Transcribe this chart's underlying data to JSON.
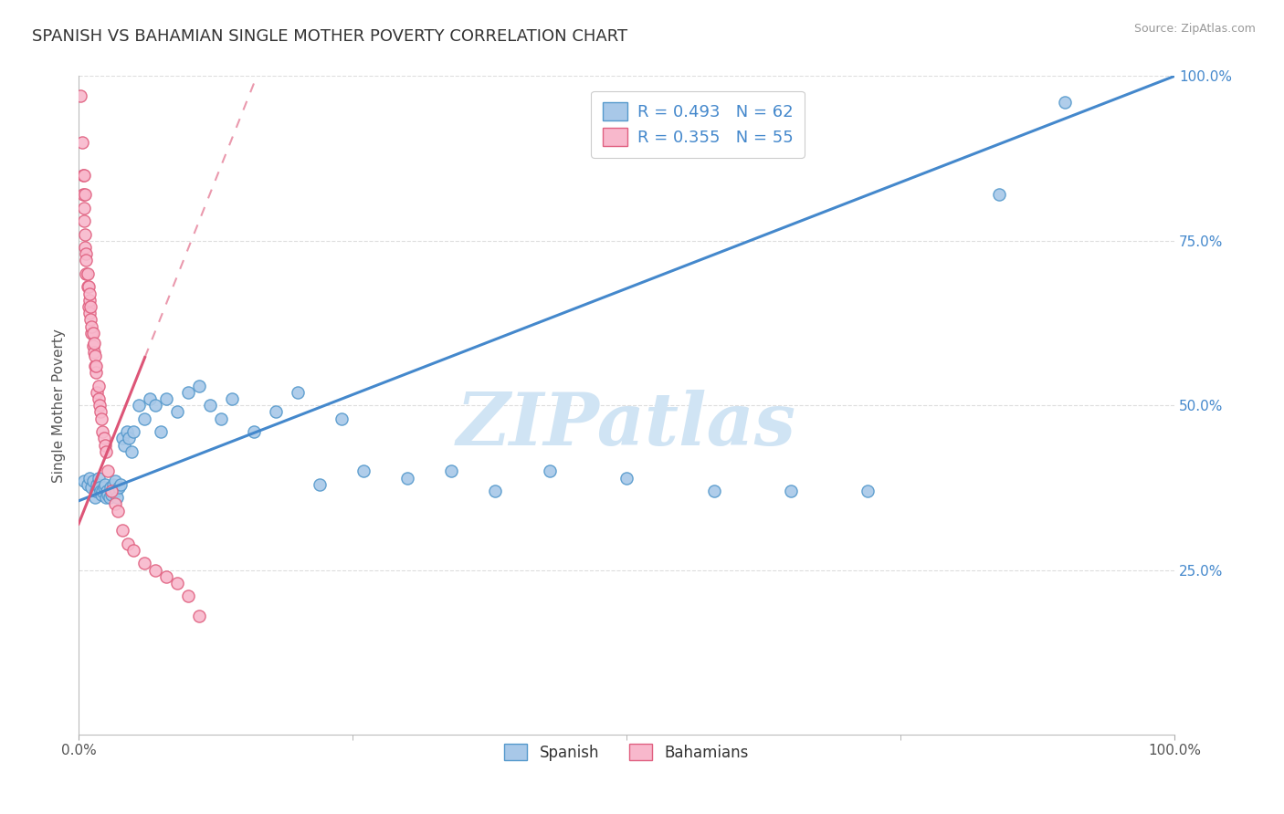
{
  "title": "SPANISH VS BAHAMIAN SINGLE MOTHER POVERTY CORRELATION CHART",
  "source_text": "Source: ZipAtlas.com",
  "ylabel": "Single Mother Poverty",
  "xlim": [
    0.0,
    1.0
  ],
  "ylim": [
    0.0,
    1.0
  ],
  "legend_r1": "R = 0.493",
  "legend_n1": "N = 62",
  "legend_r2": "R = 0.355",
  "legend_n2": "N = 55",
  "blue_color": "#a8c8e8",
  "blue_edge": "#5599cc",
  "pink_color": "#f8b8cc",
  "pink_edge": "#e06080",
  "line_blue": "#4488cc",
  "line_pink": "#dd5577",
  "r_n_color": "#4488cc",
  "watermark": "ZIPatlas",
  "watermark_color": "#d0e4f4",
  "background_color": "#ffffff",
  "title_fontsize": 13,
  "grid_color": "#dddddd",
  "spanish_x": [
    0.005,
    0.008,
    0.01,
    0.012,
    0.013,
    0.015,
    0.016,
    0.017,
    0.018,
    0.019,
    0.02,
    0.021,
    0.022,
    0.023,
    0.024,
    0.025,
    0.026,
    0.027,
    0.028,
    0.029,
    0.03,
    0.031,
    0.032,
    0.033,
    0.034,
    0.035,
    0.037,
    0.038,
    0.04,
    0.042,
    0.044,
    0.046,
    0.048,
    0.05,
    0.055,
    0.06,
    0.065,
    0.07,
    0.075,
    0.08,
    0.09,
    0.1,
    0.11,
    0.12,
    0.13,
    0.14,
    0.16,
    0.18,
    0.2,
    0.22,
    0.24,
    0.26,
    0.3,
    0.34,
    0.38,
    0.43,
    0.5,
    0.58,
    0.65,
    0.72,
    0.84,
    0.9
  ],
  "spanish_y": [
    0.385,
    0.38,
    0.39,
    0.375,
    0.385,
    0.36,
    0.37,
    0.38,
    0.39,
    0.375,
    0.37,
    0.365,
    0.37,
    0.375,
    0.38,
    0.36,
    0.37,
    0.365,
    0.36,
    0.375,
    0.365,
    0.37,
    0.38,
    0.385,
    0.37,
    0.36,
    0.375,
    0.38,
    0.45,
    0.44,
    0.46,
    0.45,
    0.43,
    0.46,
    0.5,
    0.48,
    0.51,
    0.5,
    0.46,
    0.51,
    0.49,
    0.52,
    0.53,
    0.5,
    0.48,
    0.51,
    0.46,
    0.49,
    0.52,
    0.38,
    0.48,
    0.4,
    0.39,
    0.4,
    0.37,
    0.4,
    0.39,
    0.37,
    0.37,
    0.37,
    0.82,
    0.96
  ],
  "bahamian_x": [
    0.002,
    0.003,
    0.004,
    0.004,
    0.005,
    0.005,
    0.005,
    0.006,
    0.006,
    0.006,
    0.007,
    0.007,
    0.007,
    0.008,
    0.008,
    0.009,
    0.009,
    0.01,
    0.01,
    0.01,
    0.011,
    0.011,
    0.012,
    0.012,
    0.013,
    0.013,
    0.014,
    0.014,
    0.015,
    0.015,
    0.016,
    0.016,
    0.017,
    0.018,
    0.018,
    0.019,
    0.02,
    0.021,
    0.022,
    0.023,
    0.024,
    0.025,
    0.027,
    0.03,
    0.033,
    0.036,
    0.04,
    0.045,
    0.05,
    0.06,
    0.07,
    0.08,
    0.09,
    0.1,
    0.11
  ],
  "bahamian_y": [
    0.97,
    0.9,
    0.85,
    0.82,
    0.8,
    0.85,
    0.78,
    0.82,
    0.76,
    0.74,
    0.7,
    0.73,
    0.72,
    0.68,
    0.7,
    0.65,
    0.68,
    0.64,
    0.66,
    0.67,
    0.63,
    0.65,
    0.61,
    0.62,
    0.59,
    0.61,
    0.58,
    0.595,
    0.56,
    0.575,
    0.55,
    0.56,
    0.52,
    0.51,
    0.53,
    0.5,
    0.49,
    0.48,
    0.46,
    0.45,
    0.44,
    0.43,
    0.4,
    0.37,
    0.35,
    0.34,
    0.31,
    0.29,
    0.28,
    0.26,
    0.25,
    0.24,
    0.23,
    0.21,
    0.18
  ],
  "blue_line_x0": 0.0,
  "blue_line_y0": 0.355,
  "blue_line_x1": 1.0,
  "blue_line_y1": 1.0,
  "pink_line_x0": 0.0,
  "pink_line_y0": 0.32,
  "pink_line_x1": 0.11,
  "pink_line_y1": 0.78
}
